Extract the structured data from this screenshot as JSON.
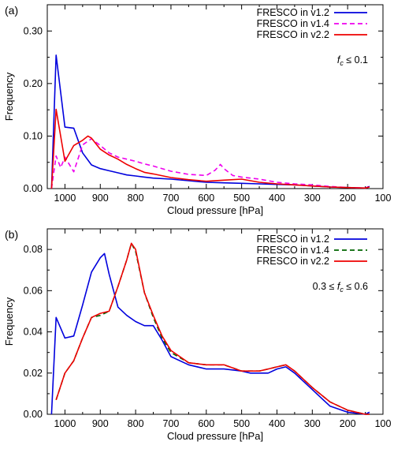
{
  "chart_data": [
    {
      "type": "line",
      "panel_label": "(a)",
      "xlabel": "Cloud pressure  [hPa]",
      "ylabel": "Frequency",
      "xlim": [
        1050,
        100
      ],
      "ylim": [
        0,
        0.35
      ],
      "x_reversed": true,
      "xticks": [
        1000,
        900,
        800,
        700,
        600,
        500,
        400,
        300,
        200,
        100
      ],
      "xtick_labels": [
        "1000",
        "900",
        "800",
        "700",
        "600",
        "500",
        "400",
        "300",
        "200",
        "100"
      ],
      "yticks": [
        0,
        0.1,
        0.2,
        0.3
      ],
      "ytick_labels": [
        "0.00",
        "0.10",
        "0.20",
        "0.30"
      ],
      "annotation": "fc ≤ 0.1",
      "annotation_parts": {
        "main": "f",
        "sub": "c",
        "rest": " ≤ 0.1"
      },
      "legend_position": "top-right",
      "series": [
        {
          "name": "FRESCO in v1.2",
          "color": "#0000dd",
          "dash": "solid",
          "x": [
            1038,
            1025,
            1000,
            975,
            950,
            925,
            900,
            875,
            850,
            825,
            800,
            775,
            750,
            700,
            650,
            600,
            550,
            500,
            450,
            400,
            350,
            300,
            250,
            200,
            150,
            138
          ],
          "y": [
            0.0,
            0.254,
            0.117,
            0.115,
            0.068,
            0.045,
            0.038,
            0.034,
            0.03,
            0.026,
            0.024,
            0.022,
            0.02,
            0.018,
            0.015,
            0.012,
            0.011,
            0.01,
            0.009,
            0.008,
            0.007,
            0.005,
            0.003,
            0.002,
            0.001,
            0.004
          ]
        },
        {
          "name": "FRESCO in v1.4",
          "color": "#ee00ee",
          "dash": "dashed",
          "x": [
            1038,
            1025,
            1012,
            1000,
            975,
            950,
            925,
            900,
            875,
            850,
            825,
            800,
            775,
            750,
            700,
            650,
            600,
            575,
            560,
            550,
            525,
            500,
            450,
            400,
            350,
            300,
            250,
            200,
            150,
            138
          ],
          "y": [
            0.0,
            0.062,
            0.04,
            0.06,
            0.032,
            0.083,
            0.095,
            0.082,
            0.068,
            0.06,
            0.056,
            0.052,
            0.047,
            0.043,
            0.033,
            0.027,
            0.025,
            0.035,
            0.046,
            0.038,
            0.025,
            0.022,
            0.018,
            0.012,
            0.009,
            0.007,
            0.004,
            0.002,
            0.001,
            0.005
          ]
        },
        {
          "name": "FRESCO in v2.2",
          "color": "#ee0000",
          "dash": "solid",
          "x": [
            1038,
            1025,
            1000,
            975,
            950,
            935,
            925,
            900,
            875,
            850,
            825,
            800,
            775,
            750,
            700,
            650,
            600,
            550,
            500,
            450,
            400,
            350,
            300,
            250,
            200,
            150,
            138
          ],
          "y": [
            0.0,
            0.151,
            0.052,
            0.082,
            0.092,
            0.1,
            0.096,
            0.075,
            0.064,
            0.056,
            0.046,
            0.038,
            0.031,
            0.028,
            0.021,
            0.017,
            0.014,
            0.016,
            0.018,
            0.012,
            0.009,
            0.007,
            0.005,
            0.003,
            0.002,
            0.001,
            0.003
          ]
        }
      ]
    },
    {
      "type": "line",
      "panel_label": "(b)",
      "xlabel": "Cloud pressure  [hPa]",
      "ylabel": "Frequency",
      "xlim": [
        1050,
        100
      ],
      "ylim": [
        0,
        0.09
      ],
      "x_reversed": true,
      "xticks": [
        1000,
        900,
        800,
        700,
        600,
        500,
        400,
        300,
        200,
        100
      ],
      "xtick_labels": [
        "1000",
        "900",
        "800",
        "700",
        "600",
        "500",
        "400",
        "300",
        "200",
        "100"
      ],
      "yticks": [
        0,
        0.02,
        0.04,
        0.06,
        0.08
      ],
      "ytick_labels": [
        "0.00",
        "0.02",
        "0.04",
        "0.06",
        "0.08"
      ],
      "annotation": "0.3 ≤ fc ≤ 0.6",
      "annotation_parts": {
        "pre": "0.3 ≤ ",
        "main": "f",
        "sub": "c",
        "rest": " ≤ 0.6"
      },
      "legend_position": "top-right",
      "series": [
        {
          "name": "FRESCO in v1.2",
          "color": "#0000dd",
          "dash": "solid",
          "x": [
            1038,
            1025,
            1000,
            975,
            950,
            925,
            900,
            888,
            875,
            850,
            825,
            800,
            775,
            750,
            725,
            700,
            650,
            600,
            550,
            500,
            475,
            450,
            425,
            400,
            375,
            350,
            300,
            250,
            200,
            150,
            138
          ],
          "y": [
            0.0,
            0.047,
            0.037,
            0.038,
            0.053,
            0.069,
            0.076,
            0.078,
            0.068,
            0.052,
            0.048,
            0.045,
            0.043,
            0.043,
            0.036,
            0.028,
            0.024,
            0.022,
            0.022,
            0.021,
            0.02,
            0.02,
            0.02,
            0.022,
            0.023,
            0.02,
            0.012,
            0.004,
            0.001,
            0.0,
            0.001
          ]
        },
        {
          "name": "FRESCO in v1.4",
          "color": "#006600",
          "dash": "dashed",
          "x": [
            1025,
            1000,
            975,
            950,
            925,
            900,
            875,
            850,
            825,
            812,
            800,
            775,
            750,
            725,
            700,
            650,
            600,
            550,
            500,
            475,
            450,
            425,
            400,
            375,
            350,
            300,
            250,
            200,
            150,
            138
          ],
          "y": [
            0.007,
            0.02,
            0.026,
            0.037,
            0.047,
            0.048,
            0.05,
            0.062,
            0.075,
            0.083,
            0.079,
            0.059,
            0.047,
            0.037,
            0.03,
            0.025,
            0.024,
            0.024,
            0.021,
            0.021,
            0.021,
            0.022,
            0.023,
            0.024,
            0.021,
            0.013,
            0.006,
            0.002,
            0.0,
            0.0
          ]
        },
        {
          "name": "FRESCO in v2.2",
          "color": "#ee0000",
          "dash": "solid",
          "x": [
            1025,
            1000,
            975,
            950,
            925,
            900,
            875,
            850,
            825,
            812,
            800,
            775,
            750,
            725,
            700,
            650,
            600,
            550,
            500,
            475,
            450,
            425,
            400,
            375,
            350,
            300,
            250,
            200,
            150,
            138
          ],
          "y": [
            0.007,
            0.02,
            0.026,
            0.037,
            0.047,
            0.049,
            0.05,
            0.062,
            0.075,
            0.083,
            0.08,
            0.059,
            0.048,
            0.038,
            0.031,
            0.025,
            0.024,
            0.024,
            0.021,
            0.021,
            0.021,
            0.022,
            0.023,
            0.024,
            0.021,
            0.013,
            0.006,
            0.002,
            0.0,
            0.0
          ]
        }
      ]
    }
  ]
}
